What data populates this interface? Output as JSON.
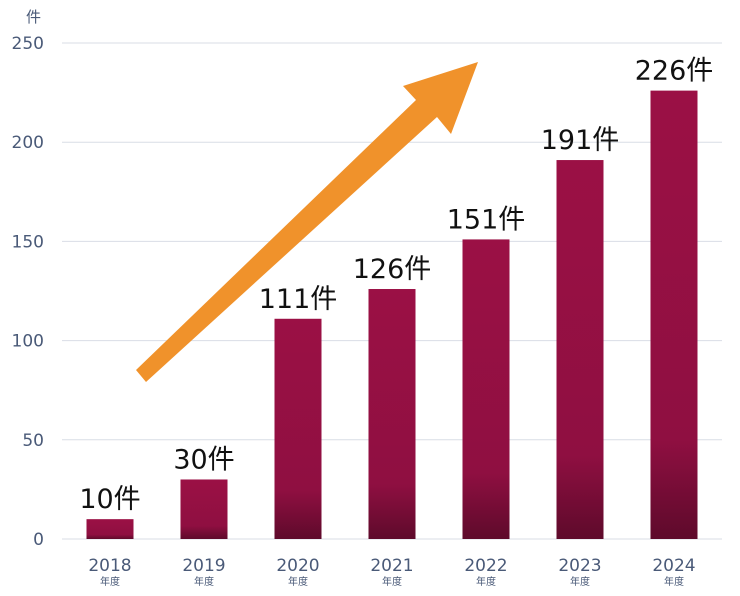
{
  "chart_data": {
    "type": "bar",
    "y_unit_label": "件",
    "categories": [
      "2018",
      "2019",
      "2020",
      "2021",
      "2022",
      "2023",
      "2024"
    ],
    "category_suffix": "年度",
    "values": [
      10,
      30,
      111,
      126,
      151,
      191,
      226
    ],
    "data_labels": [
      "10件",
      "30件",
      "111件",
      "126件",
      "151件",
      "191件",
      "226件"
    ],
    "yticks": [
      "0",
      "50",
      "100",
      "150",
      "200",
      "250"
    ],
    "ylim": [
      0,
      250
    ],
    "grid": true,
    "colors": {
      "bar_top": "#9b1045",
      "bar_bottom": "#5e0a2b",
      "arrow": "#f0922b",
      "grid": "#d9dde6"
    }
  }
}
